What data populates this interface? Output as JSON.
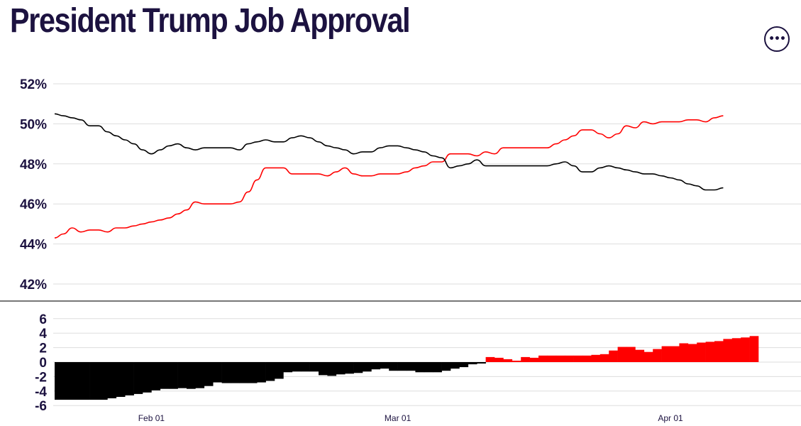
{
  "header": {
    "title": "President Trump Job Approval",
    "more_icon": "more-horizontal-icon",
    "more_label": "•••"
  },
  "colors": {
    "approve": "#ff0000",
    "disapprove": "#000000",
    "grid": "#dddddd",
    "divider": "#777777",
    "text": "#1c1240"
  },
  "chart_data": [
    {
      "type": "line",
      "x_axis": {
        "type": "date",
        "range": [
          "2025-01-21",
          "2025-04-12"
        ],
        "ticks": [
          "Feb 01",
          "Mar 01",
          "Apr 01"
        ]
      },
      "y_axis": {
        "ylim": [
          41,
          52.5
        ],
        "ticks": [
          42,
          44,
          46,
          48,
          50,
          52
        ],
        "tick_labels": [
          "42%",
          "44%",
          "46%",
          "48%",
          "50%",
          "52%"
        ]
      },
      "grid": true,
      "series": [
        {
          "color": "#ff0000",
          "points": [
            [
              "2025-01-21",
              44.3
            ],
            [
              "2025-01-22",
              44.5
            ],
            [
              "2025-01-23",
              44.8
            ],
            [
              "2025-01-24",
              44.6
            ],
            [
              "2025-01-25",
              44.7
            ],
            [
              "2025-01-26",
              44.7
            ],
            [
              "2025-01-27",
              44.6
            ],
            [
              "2025-01-28",
              44.8
            ],
            [
              "2025-01-29",
              44.8
            ],
            [
              "2025-01-30",
              44.9
            ],
            [
              "2025-01-31",
              45.0
            ],
            [
              "2025-02-01",
              45.1
            ],
            [
              "2025-02-02",
              45.2
            ],
            [
              "2025-02-03",
              45.3
            ],
            [
              "2025-02-04",
              45.5
            ],
            [
              "2025-02-05",
              45.7
            ],
            [
              "2025-02-06",
              46.1
            ],
            [
              "2025-02-07",
              46.0
            ],
            [
              "2025-02-08",
              46.0
            ],
            [
              "2025-02-09",
              46.0
            ],
            [
              "2025-02-10",
              46.0
            ],
            [
              "2025-02-11",
              46.1
            ],
            [
              "2025-02-12",
              46.6
            ],
            [
              "2025-02-13",
              47.2
            ],
            [
              "2025-02-14",
              47.8
            ],
            [
              "2025-02-15",
              47.8
            ],
            [
              "2025-02-16",
              47.8
            ],
            [
              "2025-02-17",
              47.5
            ],
            [
              "2025-02-18",
              47.5
            ],
            [
              "2025-02-19",
              47.5
            ],
            [
              "2025-02-20",
              47.5
            ],
            [
              "2025-02-21",
              47.4
            ],
            [
              "2025-02-22",
              47.6
            ],
            [
              "2025-02-23",
              47.8
            ],
            [
              "2025-02-24",
              47.5
            ],
            [
              "2025-02-25",
              47.4
            ],
            [
              "2025-02-26",
              47.4
            ],
            [
              "2025-02-27",
              47.5
            ],
            [
              "2025-02-28",
              47.5
            ],
            [
              "2025-03-01",
              47.5
            ],
            [
              "2025-03-02",
              47.6
            ],
            [
              "2025-03-03",
              47.8
            ],
            [
              "2025-03-04",
              47.9
            ],
            [
              "2025-03-05",
              48.1
            ],
            [
              "2025-03-06",
              48.1
            ],
            [
              "2025-03-07",
              48.5
            ],
            [
              "2025-03-08",
              48.5
            ],
            [
              "2025-03-09",
              48.5
            ],
            [
              "2025-03-10",
              48.4
            ],
            [
              "2025-03-11",
              48.6
            ],
            [
              "2025-03-12",
              48.5
            ],
            [
              "2025-03-13",
              48.8
            ],
            [
              "2025-03-14",
              48.8
            ],
            [
              "2025-03-15",
              48.8
            ],
            [
              "2025-03-16",
              48.8
            ],
            [
              "2025-03-17",
              48.8
            ],
            [
              "2025-03-18",
              48.8
            ],
            [
              "2025-03-19",
              49.0
            ],
            [
              "2025-03-20",
              49.2
            ],
            [
              "2025-03-21",
              49.4
            ],
            [
              "2025-03-22",
              49.7
            ],
            [
              "2025-03-23",
              49.7
            ],
            [
              "2025-03-24",
              49.5
            ],
            [
              "2025-03-25",
              49.3
            ],
            [
              "2025-03-26",
              49.5
            ],
            [
              "2025-03-27",
              49.9
            ],
            [
              "2025-03-28",
              49.8
            ],
            [
              "2025-03-29",
              50.1
            ],
            [
              "2025-03-30",
              50.0
            ],
            [
              "2025-03-31",
              50.1
            ],
            [
              "2025-04-01",
              50.1
            ],
            [
              "2025-04-02",
              50.1
            ],
            [
              "2025-04-03",
              50.2
            ],
            [
              "2025-04-04",
              50.2
            ],
            [
              "2025-04-05",
              50.1
            ],
            [
              "2025-04-06",
              50.3
            ],
            [
              "2025-04-07",
              50.4
            ]
          ]
        },
        {
          "color": "#000000",
          "points": [
            [
              "2025-01-21",
              50.5
            ],
            [
              "2025-01-22",
              50.4
            ],
            [
              "2025-01-23",
              50.3
            ],
            [
              "2025-01-24",
              50.2
            ],
            [
              "2025-01-25",
              49.9
            ],
            [
              "2025-01-26",
              49.9
            ],
            [
              "2025-01-27",
              49.6
            ],
            [
              "2025-01-28",
              49.4
            ],
            [
              "2025-01-29",
              49.2
            ],
            [
              "2025-01-30",
              49.0
            ],
            [
              "2025-01-31",
              48.7
            ],
            [
              "2025-02-01",
              48.5
            ],
            [
              "2025-02-02",
              48.7
            ],
            [
              "2025-02-03",
              48.9
            ],
            [
              "2025-02-04",
              49.0
            ],
            [
              "2025-02-05",
              48.8
            ],
            [
              "2025-02-06",
              48.7
            ],
            [
              "2025-02-07",
              48.8
            ],
            [
              "2025-02-08",
              48.8
            ],
            [
              "2025-02-09",
              48.8
            ],
            [
              "2025-02-10",
              48.8
            ],
            [
              "2025-02-11",
              48.7
            ],
            [
              "2025-02-12",
              49.0
            ],
            [
              "2025-02-13",
              49.1
            ],
            [
              "2025-02-14",
              49.2
            ],
            [
              "2025-02-15",
              49.1
            ],
            [
              "2025-02-16",
              49.1
            ],
            [
              "2025-02-17",
              49.3
            ],
            [
              "2025-02-18",
              49.4
            ],
            [
              "2025-02-19",
              49.3
            ],
            [
              "2025-02-20",
              49.1
            ],
            [
              "2025-02-21",
              48.9
            ],
            [
              "2025-02-22",
              48.8
            ],
            [
              "2025-02-23",
              48.7
            ],
            [
              "2025-02-24",
              48.5
            ],
            [
              "2025-02-25",
              48.6
            ],
            [
              "2025-02-26",
              48.6
            ],
            [
              "2025-02-27",
              48.8
            ],
            [
              "2025-02-28",
              48.9
            ],
            [
              "2025-03-01",
              48.9
            ],
            [
              "2025-03-02",
              48.8
            ],
            [
              "2025-03-03",
              48.7
            ],
            [
              "2025-03-04",
              48.6
            ],
            [
              "2025-03-05",
              48.4
            ],
            [
              "2025-03-06",
              48.3
            ],
            [
              "2025-03-07",
              47.8
            ],
            [
              "2025-03-08",
              47.9
            ],
            [
              "2025-03-09",
              48.0
            ],
            [
              "2025-03-10",
              48.2
            ],
            [
              "2025-03-11",
              47.9
            ],
            [
              "2025-03-12",
              47.9
            ],
            [
              "2025-03-13",
              47.9
            ],
            [
              "2025-03-14",
              47.9
            ],
            [
              "2025-03-15",
              47.9
            ],
            [
              "2025-03-16",
              47.9
            ],
            [
              "2025-03-17",
              47.9
            ],
            [
              "2025-03-18",
              47.9
            ],
            [
              "2025-03-19",
              48.0
            ],
            [
              "2025-03-20",
              48.1
            ],
            [
              "2025-03-21",
              47.9
            ],
            [
              "2025-03-22",
              47.6
            ],
            [
              "2025-03-23",
              47.6
            ],
            [
              "2025-03-24",
              47.8
            ],
            [
              "2025-03-25",
              47.9
            ],
            [
              "2025-03-26",
              47.8
            ],
            [
              "2025-03-27",
              47.7
            ],
            [
              "2025-03-28",
              47.6
            ],
            [
              "2025-03-29",
              47.5
            ],
            [
              "2025-03-30",
              47.5
            ],
            [
              "2025-03-31",
              47.4
            ],
            [
              "2025-04-01",
              47.3
            ],
            [
              "2025-04-02",
              47.2
            ],
            [
              "2025-04-03",
              47.0
            ],
            [
              "2025-04-04",
              46.9
            ],
            [
              "2025-04-05",
              46.7
            ],
            [
              "2025-04-06",
              46.7
            ],
            [
              "2025-04-07",
              46.8
            ]
          ]
        }
      ]
    },
    {
      "type": "bar",
      "x_axis": {
        "type": "date",
        "range": [
          "2025-01-21",
          "2025-04-12"
        ],
        "ticks": [
          "Feb 01",
          "Mar 01",
          "Apr 01"
        ]
      },
      "y_axis": {
        "ylim": [
          -6.5,
          7
        ],
        "ticks": [
          -6,
          -4,
          -2,
          0,
          2,
          4,
          6
        ],
        "tick_labels": [
          "-6",
          "-4",
          "-2",
          "0",
          "2",
          "4",
          "6"
        ]
      },
      "grid": true,
      "positive_color": "#ff0000",
      "negative_color": "#000000",
      "bars": [
        [
          "2025-01-21",
          -5.2
        ],
        [
          "2025-01-22",
          -5.2
        ],
        [
          "2025-01-23",
          -5.2
        ],
        [
          "2025-01-24",
          -5.2
        ],
        [
          "2025-01-25",
          -5.2
        ],
        [
          "2025-01-26",
          -5.2
        ],
        [
          "2025-01-27",
          -5.0
        ],
        [
          "2025-01-28",
          -4.8
        ],
        [
          "2025-01-29",
          -4.6
        ],
        [
          "2025-01-30",
          -4.4
        ],
        [
          "2025-01-31",
          -4.2
        ],
        [
          "2025-02-01",
          -3.9
        ],
        [
          "2025-02-02",
          -3.7
        ],
        [
          "2025-02-03",
          -3.7
        ],
        [
          "2025-02-04",
          -3.6
        ],
        [
          "2025-02-05",
          -3.7
        ],
        [
          "2025-02-06",
          -3.6
        ],
        [
          "2025-02-07",
          -3.3
        ],
        [
          "2025-02-08",
          -2.8
        ],
        [
          "2025-02-09",
          -2.9
        ],
        [
          "2025-02-10",
          -2.9
        ],
        [
          "2025-02-11",
          -2.9
        ],
        [
          "2025-02-12",
          -2.9
        ],
        [
          "2025-02-13",
          -2.8
        ],
        [
          "2025-02-14",
          -2.6
        ],
        [
          "2025-02-15",
          -2.3
        ],
        [
          "2025-02-16",
          -1.4
        ],
        [
          "2025-02-17",
          -1.3
        ],
        [
          "2025-02-18",
          -1.3
        ],
        [
          "2025-02-19",
          -1.3
        ],
        [
          "2025-02-20",
          -1.8
        ],
        [
          "2025-02-21",
          -1.9
        ],
        [
          "2025-02-22",
          -1.7
        ],
        [
          "2025-02-23",
          -1.6
        ],
        [
          "2025-02-24",
          -1.5
        ],
        [
          "2025-02-25",
          -1.3
        ],
        [
          "2025-02-26",
          -1.0
        ],
        [
          "2025-02-27",
          -0.9
        ],
        [
          "2025-02-28",
          -1.2
        ],
        [
          "2025-03-01",
          -1.2
        ],
        [
          "2025-03-02",
          -1.2
        ],
        [
          "2025-03-03",
          -1.4
        ],
        [
          "2025-03-04",
          -1.4
        ],
        [
          "2025-03-05",
          -1.4
        ],
        [
          "2025-03-06",
          -1.2
        ],
        [
          "2025-03-07",
          -0.9
        ],
        [
          "2025-03-08",
          -0.7
        ],
        [
          "2025-03-09",
          -0.3
        ],
        [
          "2025-03-10",
          -0.2
        ],
        [
          "2025-03-11",
          0.7
        ],
        [
          "2025-03-12",
          0.6
        ],
        [
          "2025-03-13",
          0.4
        ],
        [
          "2025-03-14",
          0.2
        ],
        [
          "2025-03-15",
          0.7
        ],
        [
          "2025-03-16",
          0.6
        ],
        [
          "2025-03-17",
          0.9
        ],
        [
          "2025-03-18",
          0.9
        ],
        [
          "2025-03-19",
          0.9
        ],
        [
          "2025-03-20",
          0.9
        ],
        [
          "2025-03-21",
          0.9
        ],
        [
          "2025-03-22",
          0.9
        ],
        [
          "2025-03-23",
          1.0
        ],
        [
          "2025-03-24",
          1.1
        ],
        [
          "2025-03-25",
          1.6
        ],
        [
          "2025-03-26",
          2.1
        ],
        [
          "2025-03-27",
          2.1
        ],
        [
          "2025-03-28",
          1.7
        ],
        [
          "2025-03-29",
          1.4
        ],
        [
          "2025-03-30",
          1.8
        ],
        [
          "2025-03-31",
          2.2
        ],
        [
          "2025-04-01",
          2.2
        ],
        [
          "2025-04-02",
          2.6
        ],
        [
          "2025-04-03",
          2.5
        ],
        [
          "2025-04-04",
          2.7
        ],
        [
          "2025-04-05",
          2.8
        ],
        [
          "2025-04-06",
          2.9
        ],
        [
          "2025-04-07",
          3.2
        ],
        [
          "2025-04-08",
          3.3
        ],
        [
          "2025-04-09",
          3.4
        ],
        [
          "2025-04-10",
          3.6
        ]
      ]
    }
  ]
}
